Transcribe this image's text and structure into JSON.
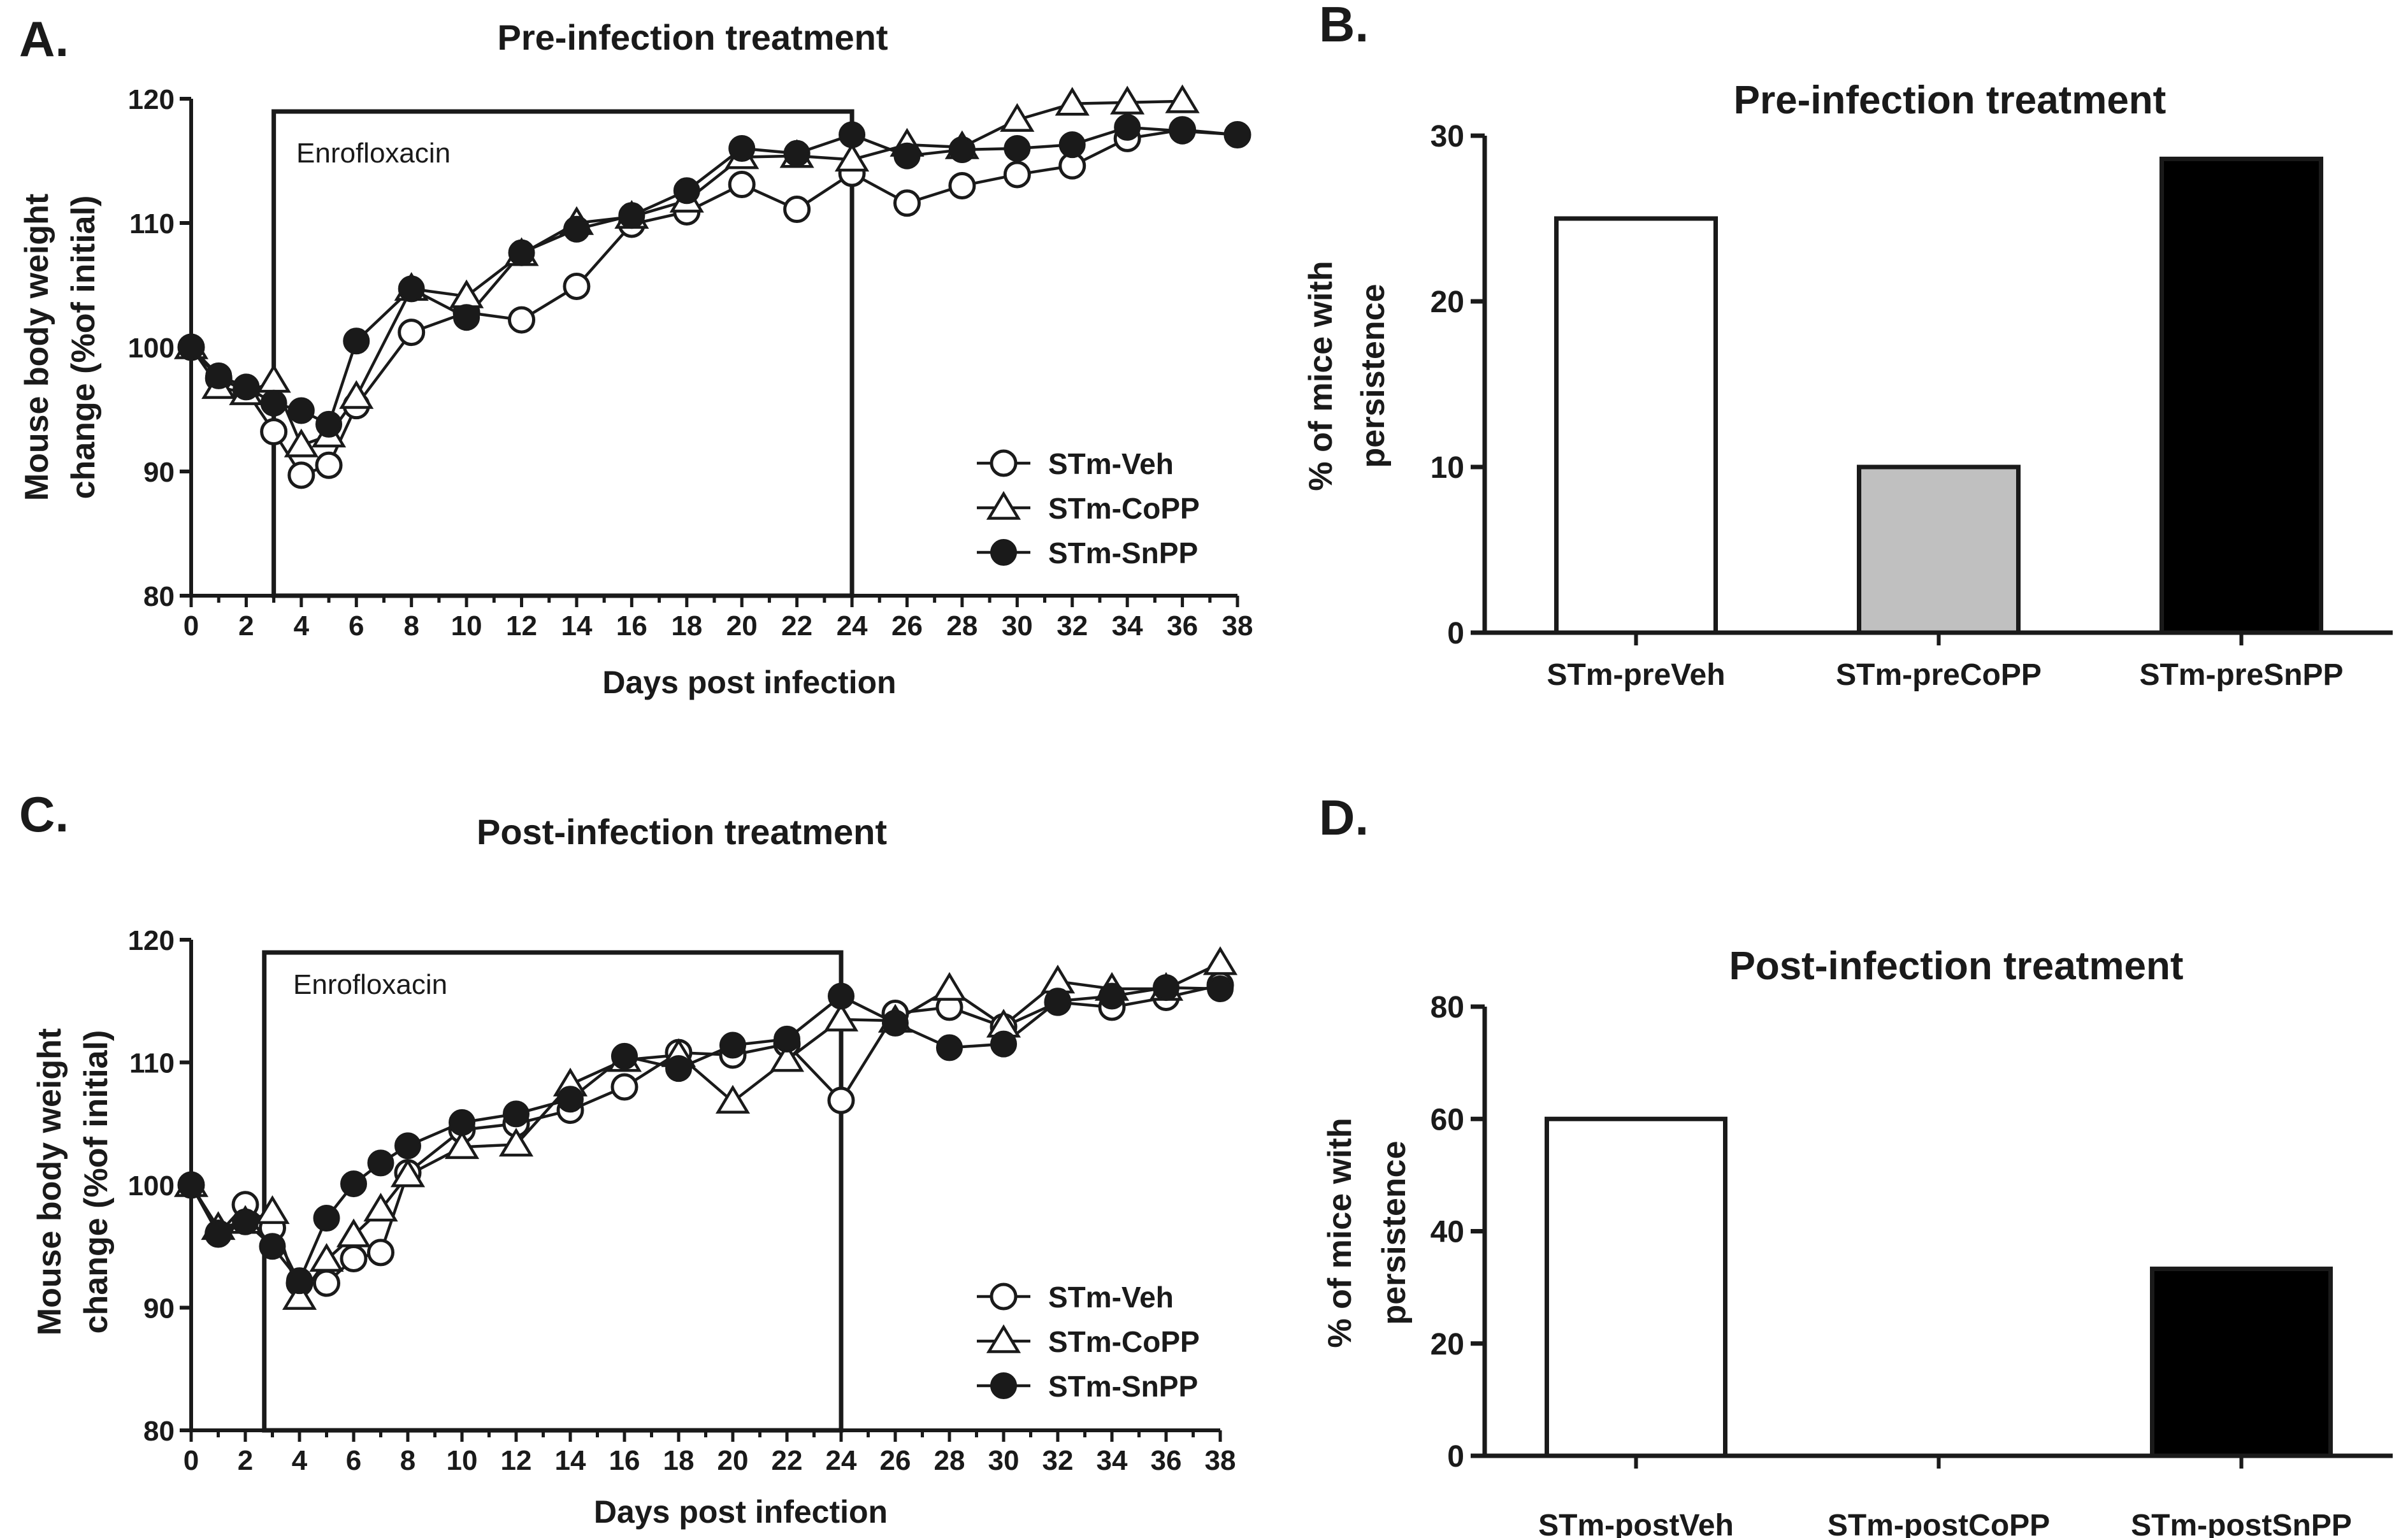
{
  "chart_data": [
    {
      "panel": "A.",
      "type": "line",
      "title": "Pre-infection treatment",
      "xlabel": "Days post infection",
      "ylabel": [
        "Mouse body weight",
        "change (%of initial)"
      ],
      "xlim": [
        0,
        38
      ],
      "ylim": [
        80,
        120
      ],
      "xticks": [
        "0",
        "2",
        "4",
        "6",
        "8",
        "10",
        "12",
        "14",
        "16",
        "18",
        "20",
        "22",
        "24",
        "26",
        "28",
        "30",
        "32",
        "34",
        "36",
        "38"
      ],
      "yticks": [
        "80",
        "90",
        "100",
        "110",
        "120"
      ],
      "annotation": "Enrofloxacin",
      "treatment_window": [
        3,
        24
      ],
      "legend_position": "lower-right",
      "series": [
        {
          "name": "STm-Veh",
          "marker": "open-circle",
          "x": [
            0,
            1,
            2,
            3,
            4,
            5,
            6,
            8,
            10,
            12,
            14,
            16,
            18,
            20,
            22,
            24,
            26,
            28,
            30,
            32,
            34,
            36,
            38
          ],
          "y": [
            100,
            97.5,
            96.5,
            93.2,
            89.7,
            90.5,
            95.3,
            101.2,
            102.8,
            102.2,
            104.9,
            109.9,
            110.9,
            113.1,
            111.1,
            114,
            111.6,
            113,
            113.9,
            114.6,
            116.8,
            117.5,
            117.1
          ]
        },
        {
          "name": "STm-CoPP",
          "marker": "open-triangle",
          "x": [
            0,
            1,
            2,
            3,
            4,
            5,
            6,
            8,
            10,
            12,
            14,
            16,
            18,
            20,
            22,
            24,
            26,
            28,
            30,
            32,
            34,
            36
          ],
          "y": [
            100,
            96.8,
            96.3,
            97.3,
            92.1,
            92.9,
            96,
            104.7,
            104.1,
            107.5,
            110,
            110.5,
            111.8,
            115.3,
            115.4,
            115.1,
            116.3,
            116.1,
            118.3,
            119.6,
            119.7,
            119.8
          ]
        },
        {
          "name": "STm-SnPP",
          "marker": "filled-circle",
          "x": [
            0,
            1,
            2,
            3,
            4,
            5,
            6,
            8,
            10,
            12,
            14,
            16,
            18,
            20,
            22,
            24,
            26,
            28,
            30,
            32,
            34,
            36,
            38
          ],
          "y": [
            100,
            97.7,
            96.8,
            95.5,
            94.9,
            93.8,
            100.5,
            104.7,
            102.4,
            107.6,
            109.5,
            110.6,
            112.6,
            116,
            115.6,
            117.1,
            115.4,
            115.9,
            116,
            116.3,
            117.7,
            117.4,
            117.1
          ]
        }
      ]
    },
    {
      "panel": "B.",
      "type": "bar",
      "title": "Pre-infection treatment",
      "ylabel": [
        "% of mice with",
        "persistence"
      ],
      "ylim": [
        0,
        30
      ],
      "yticks": [
        "0",
        "10",
        "20",
        "30"
      ],
      "categories": [
        "STm-preVeh",
        "STm-preCoPP",
        "STm-preSnPP"
      ],
      "values": [
        25,
        10,
        28.6
      ],
      "colors": [
        "#ffffff",
        "#c0c0c0",
        "#000000"
      ]
    },
    {
      "panel": "C.",
      "type": "line",
      "title": "Post-infection treatment",
      "xlabel": "Days post infection",
      "ylabel": [
        "Mouse body weight",
        "change (%of initial)"
      ],
      "xlim": [
        0,
        38
      ],
      "ylim": [
        80,
        120
      ],
      "xticks": [
        "0",
        "2",
        "4",
        "6",
        "8",
        "10",
        "12",
        "14",
        "16",
        "18",
        "20",
        "22",
        "24",
        "26",
        "28",
        "30",
        "32",
        "34",
        "36",
        "38"
      ],
      "yticks": [
        "80",
        "90",
        "100",
        "110",
        "120"
      ],
      "annotation": "Enrofloxacin",
      "treatment_window": [
        2.7,
        24
      ],
      "legend_position": "lower-right",
      "series": [
        {
          "name": "STm-Veh",
          "marker": "open-circle",
          "x": [
            0,
            1,
            2,
            3,
            4,
            5,
            6,
            7,
            8,
            10,
            12,
            14,
            16,
            18,
            20,
            22,
            24,
            26,
            28,
            30,
            32,
            34,
            36,
            38
          ],
          "y": [
            100,
            96,
            98.4,
            96.5,
            92,
            92,
            94,
            94.5,
            101,
            104.5,
            105,
            106.1,
            108,
            110.8,
            110.6,
            111.5,
            106.9,
            114,
            114.5,
            112.9,
            114.9,
            114.5,
            115.3,
            116.3
          ]
        },
        {
          "name": "STm-CoPP",
          "marker": "open-triangle",
          "x": [
            0,
            1,
            2,
            3,
            4,
            5,
            6,
            7,
            8,
            10,
            12,
            14,
            16,
            18,
            20,
            22,
            24,
            26,
            28,
            30,
            32,
            34,
            36,
            38
          ],
          "y": [
            100,
            96.5,
            97,
            97.8,
            90.8,
            93.9,
            95.9,
            98,
            100.8,
            103.1,
            103.3,
            108.2,
            110.2,
            110.6,
            106.8,
            110.2,
            113.5,
            113.4,
            116,
            113,
            116.6,
            116,
            116,
            118.1
          ]
        },
        {
          "name": "STm-SnPP",
          "marker": "filled-circle",
          "x": [
            0,
            1,
            2,
            3,
            4,
            5,
            6,
            7,
            8,
            10,
            12,
            14,
            16,
            18,
            20,
            22,
            24,
            26,
            28,
            30,
            32,
            34,
            36,
            38
          ],
          "y": [
            100,
            96.1,
            97,
            95,
            92.2,
            97.3,
            100.1,
            101.8,
            103.2,
            105.1,
            105.8,
            107,
            110.5,
            109.5,
            111.4,
            111.9,
            115.4,
            113.2,
            111.2,
            111.5,
            115,
            115.4,
            116.1,
            116
          ]
        }
      ]
    },
    {
      "panel": "D.",
      "type": "bar",
      "title": "Post-infection treatment",
      "ylabel": [
        "% of mice with",
        "persistence"
      ],
      "ylim": [
        0,
        80
      ],
      "yticks": [
        "0",
        "20",
        "40",
        "60",
        "80"
      ],
      "categories": [
        "STm-postVeh",
        "STm-postCoPP",
        "STm-postSnPP"
      ],
      "values": [
        60,
        0,
        33.3
      ],
      "colors": [
        "#ffffff",
        "#c0c0c0",
        "#000000"
      ]
    }
  ]
}
